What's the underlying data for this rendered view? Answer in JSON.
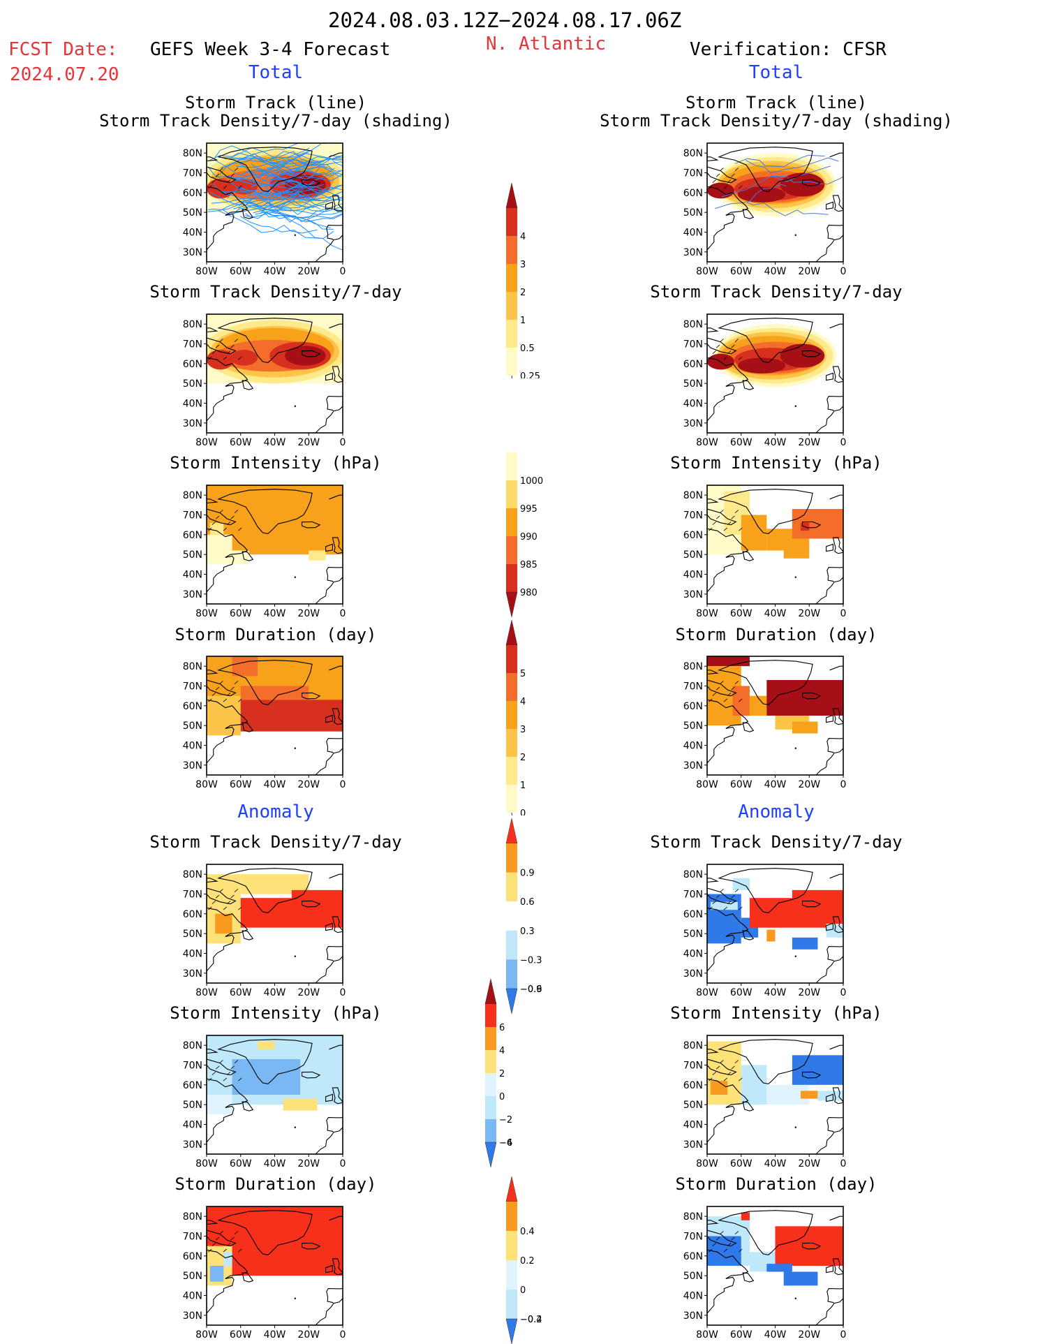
{
  "header": {
    "period": "2024.08.03.12Z−2024.08.17.06Z",
    "fcst_label": "FCST Date:",
    "fcst_date": "2024.07.20",
    "forecast_title": "GEFS Week 3-4 Forecast",
    "region": "N. Atlantic",
    "verification": "Verification: CFSR"
  },
  "sections": {
    "total": "Total",
    "anomaly": "Anomaly"
  },
  "titles": {
    "track_line": "Storm Track (line)",
    "track_shading": "Storm Track Density/7-day (shading)",
    "density": "Storm Track Density/7-day",
    "intensity": "Storm Intensity (hPa)",
    "duration": "Storm Duration (day)"
  },
  "axes": {
    "lat": [
      "80N",
      "70N",
      "60N",
      "50N",
      "40N",
      "30N"
    ],
    "lon": [
      "80W",
      "60W",
      "40W",
      "20W",
      "0"
    ]
  },
  "colorbars": [
    {
      "id": "density",
      "labels": [
        "4",
        "3",
        "2",
        "1",
        "0.5",
        "0.25"
      ],
      "colors": [
        "#a50f15",
        "#d7301f",
        "#f46d2a",
        "#f7a21a",
        "#fdc44a",
        "#feea8a",
        "#fffbc8"
      ]
    },
    {
      "id": "intensity",
      "labels": [
        "1000",
        "995",
        "990",
        "985",
        "980"
      ],
      "colors": [
        "#fffbc8",
        "#fdd96a",
        "#f7a21a",
        "#f46d2a",
        "#d7301f",
        "#a50f15"
      ]
    },
    {
      "id": "duration",
      "labels": [
        "5",
        "4",
        "3",
        "2",
        "1",
        "0"
      ],
      "colors": [
        "#a50f15",
        "#d7301f",
        "#f46d2a",
        "#f7a21a",
        "#fdc44a",
        "#feea8a",
        "#fffbc8"
      ]
    },
    {
      "id": "anom-density",
      "labels": [
        "0.9",
        "0.6",
        "0.3",
        "−0.3",
        "−0.6",
        "−0.9"
      ],
      "colors": [
        "#f6301a",
        "#f99a20",
        "#fde27a",
        "#ffffff",
        "#bfe8fb",
        "#79b8f2",
        "#2f7ae8"
      ]
    },
    {
      "id": "anom-intensity",
      "labels": [
        "6",
        "4",
        "2",
        "0",
        "−2",
        "−4",
        "−6"
      ],
      "colors": [
        "#a50f15",
        "#f6301a",
        "#f99a20",
        "#fde27a",
        "#dff4ff",
        "#bfe8fb",
        "#79b8f2",
        "#2f7ae8"
      ]
    },
    {
      "id": "anom-duration",
      "labels": [
        "0.4",
        "0.2",
        "0",
        "−0.2",
        "−0.4"
      ],
      "colors": [
        "#f6301a",
        "#f99a20",
        "#fde27a",
        "#dff4ff",
        "#bfe8fb",
        "#2f7ae8"
      ]
    }
  ],
  "colors": {
    "dark_red": "#a50f15",
    "red": "#d7301f",
    "orange_red": "#f46d2a",
    "orange": "#f7a21a",
    "light_orange": "#fdc44a",
    "yellow": "#feea8a",
    "pale": "#fffbc8",
    "anom_red": "#f6301a",
    "anom_orange": "#f99a20",
    "anom_yellow": "#fde27a",
    "pale_blue": "#bfe8fb",
    "light_blue": "#dff4ff",
    "mid_blue": "#79b8f2",
    "blue": "#2f7ae8",
    "track": "#1e90ff",
    "track_obs": "#4a78d8",
    "red_label": "#e8333a",
    "blue_label": "#1f3fff"
  }
}
